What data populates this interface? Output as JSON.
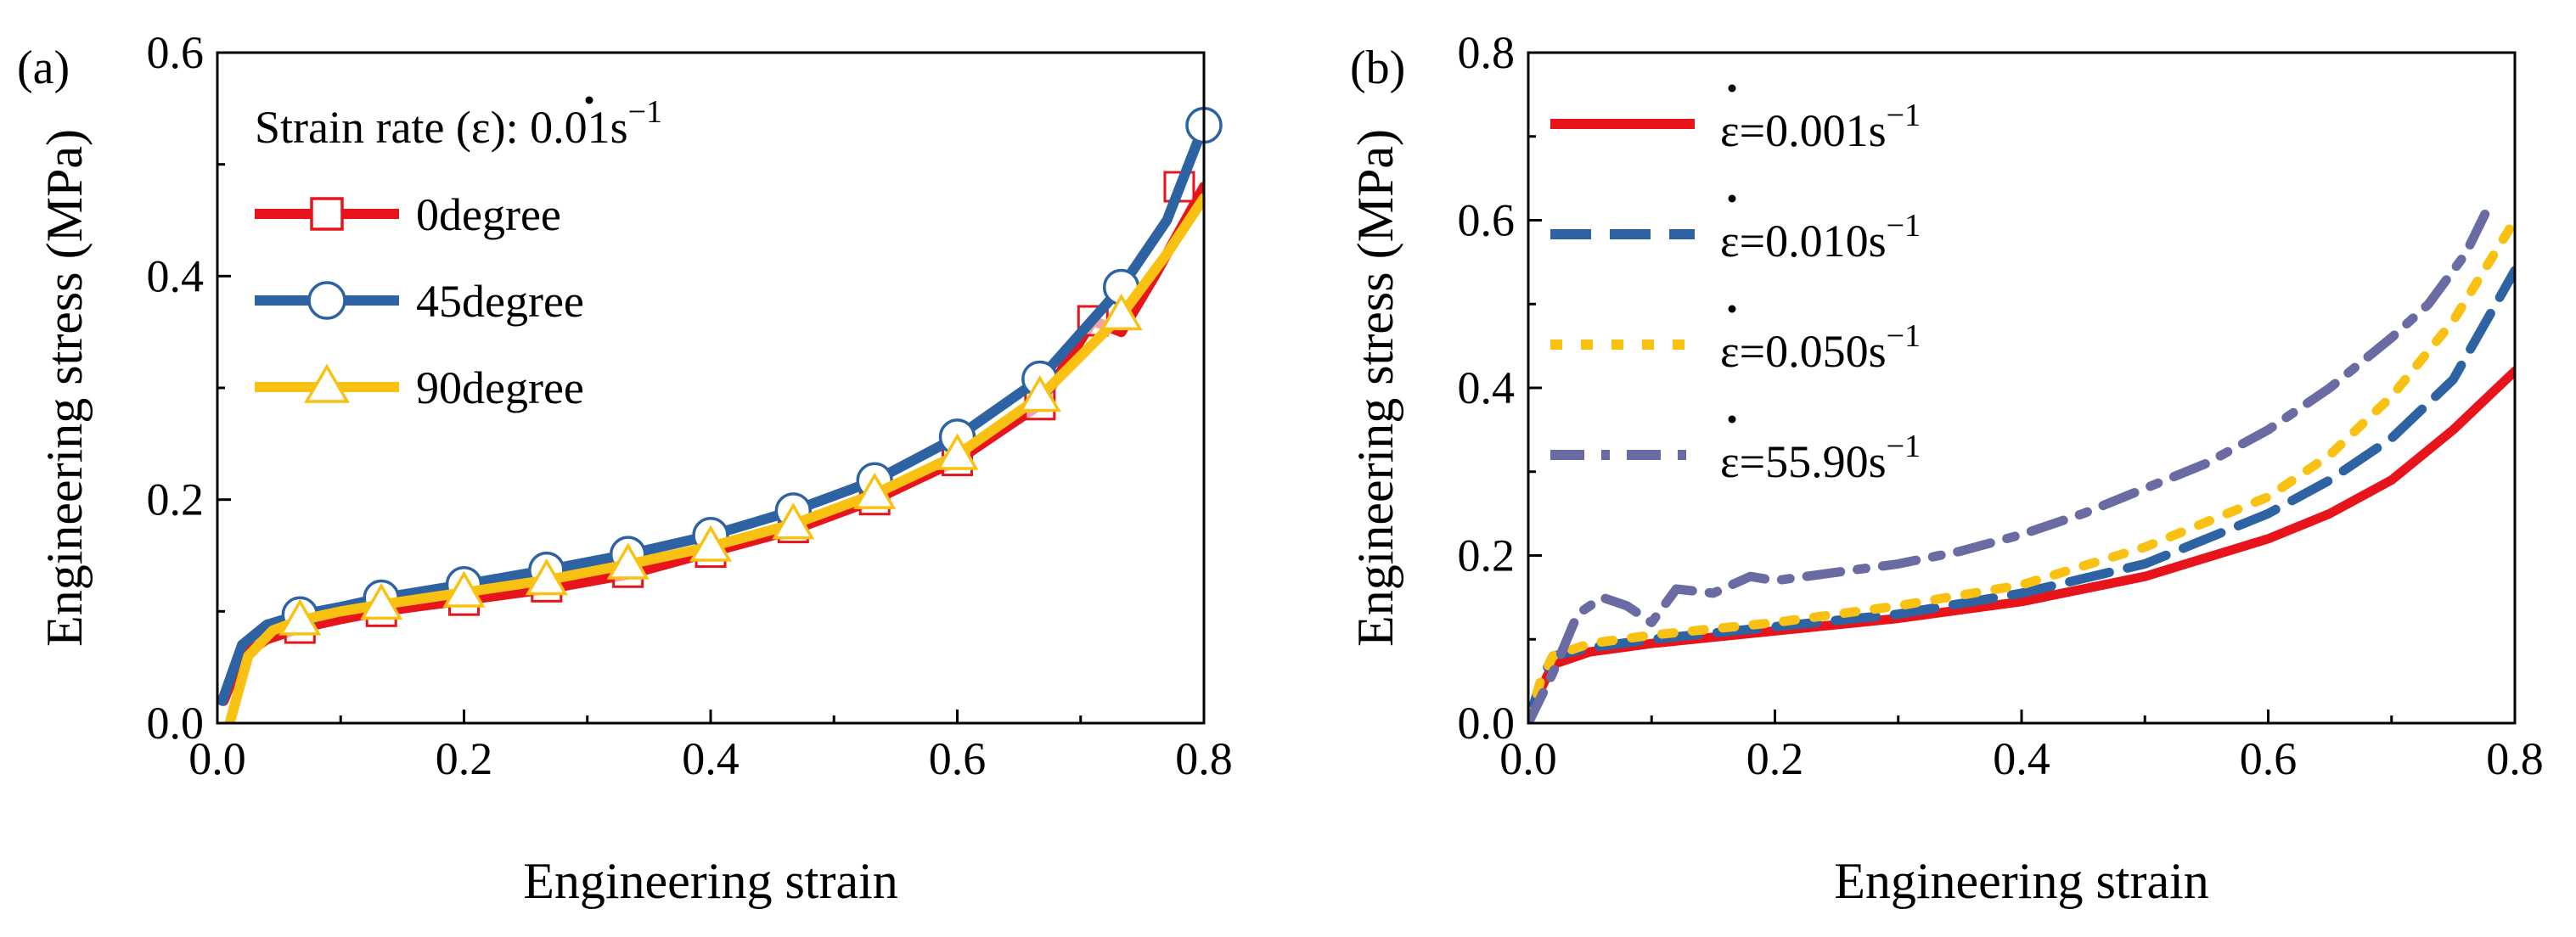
{
  "chart_data": [
    {
      "type": "line",
      "panel_label": "(a)",
      "xlabel": "Engineering strain",
      "ylabel": "Engineering stress (MPa)",
      "xlim": [
        0,
        0.8
      ],
      "ylim": [
        0,
        0.6
      ],
      "xticks": [
        0.0,
        0.2,
        0.4,
        0.6,
        0.8
      ],
      "xtick_labels": [
        "0.0",
        "0.2",
        "0.4",
        "0.6",
        "0.8"
      ],
      "yticks": [
        0.0,
        0.2,
        0.4,
        0.6
      ],
      "ytick_labels": [
        "0.0",
        "0.2",
        "0.4",
        "0.6"
      ],
      "legend_title": {
        "prefix": "Strain rate (",
        "symbol": "ε",
        "middle": "): 0.01s",
        "sup": "−1"
      },
      "legend_position": "top-left",
      "series": [
        {
          "name": "0degree",
          "color": "#e8141b",
          "marker": "square",
          "marker_fill": "#ffffff",
          "x": [
            0.005,
            0.02,
            0.04,
            0.067,
            0.1,
            0.133,
            0.2,
            0.267,
            0.333,
            0.4,
            0.467,
            0.533,
            0.6,
            0.667,
            0.71,
            0.733,
            0.76,
            0.8
          ],
          "y": [
            0.02,
            0.06,
            0.075,
            0.085,
            0.093,
            0.1,
            0.11,
            0.12,
            0.133,
            0.153,
            0.173,
            0.2,
            0.235,
            0.285,
            0.36,
            0.35,
            0.4,
            0.48
          ],
          "marker_x": [
            0.067,
            0.133,
            0.2,
            0.267,
            0.333,
            0.4,
            0.467,
            0.533,
            0.6,
            0.667,
            0.71,
            0.78
          ],
          "marker_y": [
            0.085,
            0.1,
            0.11,
            0.122,
            0.135,
            0.153,
            0.175,
            0.2,
            0.235,
            0.285,
            0.36,
            0.48
          ]
        },
        {
          "name": "45degree",
          "color": "#2e63a3",
          "marker": "circle",
          "marker_fill": "#ffffff",
          "x": [
            0.004,
            0.02,
            0.04,
            0.067,
            0.1,
            0.133,
            0.2,
            0.267,
            0.333,
            0.4,
            0.467,
            0.533,
            0.6,
            0.667,
            0.733,
            0.77,
            0.8
          ],
          "y": [
            0.02,
            0.07,
            0.088,
            0.097,
            0.104,
            0.112,
            0.124,
            0.137,
            0.151,
            0.168,
            0.19,
            0.217,
            0.256,
            0.308,
            0.39,
            0.45,
            0.535
          ],
          "marker_x": [
            0.067,
            0.133,
            0.2,
            0.267,
            0.333,
            0.4,
            0.467,
            0.533,
            0.6,
            0.667,
            0.733,
            0.8
          ],
          "marker_y": [
            0.097,
            0.112,
            0.124,
            0.137,
            0.151,
            0.168,
            0.19,
            0.217,
            0.256,
            0.308,
            0.39,
            0.535
          ]
        },
        {
          "name": "90degree",
          "color": "#f9c112",
          "marker": "triangle",
          "marker_fill": "#ffffff",
          "x": [
            0.01,
            0.025,
            0.045,
            0.067,
            0.1,
            0.133,
            0.2,
            0.267,
            0.333,
            0.4,
            0.467,
            0.533,
            0.6,
            0.667,
            0.733,
            0.77,
            0.8
          ],
          "y": [
            0.0,
            0.06,
            0.083,
            0.092,
            0.1,
            0.106,
            0.117,
            0.128,
            0.142,
            0.158,
            0.178,
            0.205,
            0.24,
            0.292,
            0.365,
            0.42,
            0.47
          ],
          "marker_x": [
            0.067,
            0.133,
            0.2,
            0.267,
            0.333,
            0.4,
            0.467,
            0.533,
            0.6,
            0.667,
            0.733
          ],
          "marker_y": [
            0.092,
            0.106,
            0.117,
            0.128,
            0.142,
            0.158,
            0.178,
            0.205,
            0.24,
            0.292,
            0.365
          ]
        }
      ]
    },
    {
      "type": "line",
      "panel_label": "(b)",
      "xlabel": "Engineering strain",
      "ylabel": "Engineering stress (MPa)",
      "xlim": [
        0,
        0.8
      ],
      "ylim": [
        0,
        0.8
      ],
      "xticks": [
        0.0,
        0.2,
        0.4,
        0.6,
        0.8
      ],
      "xtick_labels": [
        "0.0",
        "0.2",
        "0.4",
        "0.6",
        "0.8"
      ],
      "yticks": [
        0.0,
        0.2,
        0.4,
        0.6,
        0.8
      ],
      "ytick_labels": [
        "0.0",
        "0.2",
        "0.4",
        "0.6",
        "0.8"
      ],
      "legend_position": "top-left",
      "series": [
        {
          "name": "ε=0.001s−1",
          "legend_main": "ε=0.001s",
          "legend_sup": "−1",
          "color": "#e8141b",
          "dash": "solid",
          "x": [
            0.0,
            0.01,
            0.02,
            0.05,
            0.1,
            0.2,
            0.3,
            0.4,
            0.5,
            0.6,
            0.65,
            0.7,
            0.75,
            0.8
          ],
          "y": [
            0.0,
            0.04,
            0.07,
            0.085,
            0.095,
            0.11,
            0.125,
            0.145,
            0.175,
            0.22,
            0.25,
            0.29,
            0.35,
            0.42
          ]
        },
        {
          "name": "ε=0.010s−1",
          "legend_main": "ε=0.010s",
          "legend_sup": "−1",
          "color": "#2e63a3",
          "dash": "dashed",
          "x": [
            0.0,
            0.01,
            0.02,
            0.05,
            0.1,
            0.2,
            0.3,
            0.4,
            0.5,
            0.6,
            0.65,
            0.7,
            0.75,
            0.8
          ],
          "y": [
            0.0,
            0.05,
            0.08,
            0.09,
            0.1,
            0.115,
            0.13,
            0.155,
            0.19,
            0.25,
            0.29,
            0.34,
            0.41,
            0.54
          ]
        },
        {
          "name": "ε=0.050s−1",
          "legend_main": "ε=0.050s",
          "legend_sup": "−1",
          "color": "#f9c112",
          "dash": "dotted",
          "x": [
            0.0,
            0.01,
            0.02,
            0.05,
            0.1,
            0.2,
            0.3,
            0.4,
            0.5,
            0.6,
            0.65,
            0.7,
            0.75,
            0.8
          ],
          "y": [
            0.0,
            0.05,
            0.08,
            0.095,
            0.105,
            0.12,
            0.14,
            0.165,
            0.21,
            0.27,
            0.32,
            0.39,
            0.48,
            0.6
          ]
        },
        {
          "name": "ε=55.90s−1",
          "legend_main": "ε=55.90s",
          "legend_sup": "−1",
          "color": "#6b6ba3",
          "dash": "dashdot",
          "x": [
            0.0,
            0.02,
            0.04,
            0.06,
            0.08,
            0.1,
            0.12,
            0.15,
            0.18,
            0.2,
            0.25,
            0.3,
            0.35,
            0.4,
            0.45,
            0.5,
            0.55,
            0.6,
            0.65,
            0.7,
            0.73,
            0.76,
            0.78
          ],
          "y": [
            0.0,
            0.06,
            0.13,
            0.15,
            0.14,
            0.12,
            0.16,
            0.155,
            0.175,
            0.17,
            0.18,
            0.19,
            0.205,
            0.225,
            0.25,
            0.28,
            0.31,
            0.35,
            0.4,
            0.46,
            0.5,
            0.56,
            0.62
          ]
        }
      ]
    }
  ]
}
